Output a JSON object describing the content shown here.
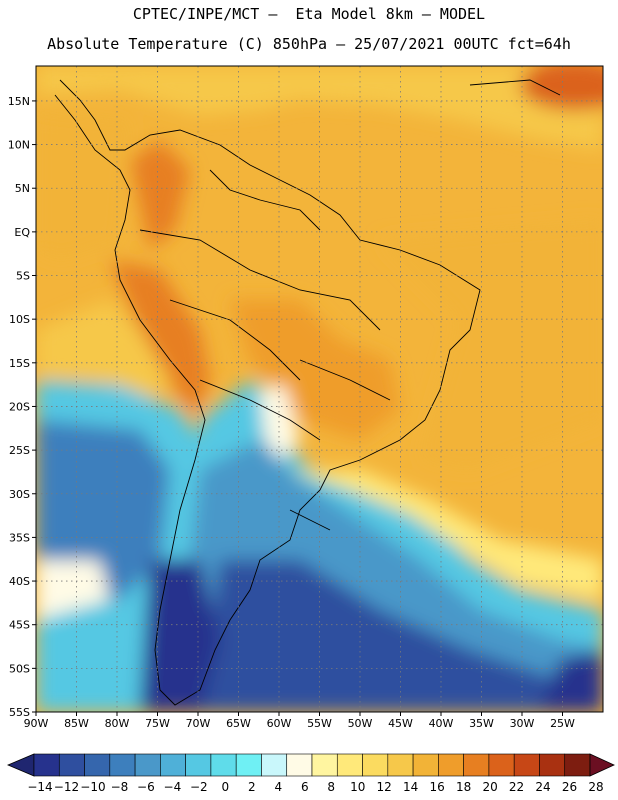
{
  "title_line1": "CPTEC/INPE/MCT –  Eta Model 8km – MODEL",
  "title_line2": "Absolute Temperature (C) 850hPa – 25/07/2021 00UTC fct=64h",
  "lat_labels": [
    "15N",
    "10N",
    "5N",
    "EQ",
    "5S",
    "10S",
    "15S",
    "20S",
    "25S",
    "30S",
    "35S",
    "40S",
    "45S",
    "50S",
    "55S"
  ],
  "lon_labels": [
    "90W",
    "85W",
    "80W",
    "75W",
    "70W",
    "65W",
    "60W",
    "55W",
    "50W",
    "45W",
    "40W",
    "35W",
    "30W",
    "25W"
  ],
  "colorbar": {
    "labels": [
      "−14",
      "−12",
      "−10",
      "−8",
      "−6",
      "−4",
      "−2",
      "0",
      "2",
      "4",
      "6",
      "8",
      "10",
      "12",
      "14",
      "16",
      "18",
      "20",
      "22",
      "24",
      "26",
      "28"
    ],
    "colors": [
      "#26328d",
      "#2f4f9f",
      "#3566ad",
      "#3d7fbd",
      "#4a98c9",
      "#4fb0d8",
      "#55c8e3",
      "#5fdcea",
      "#6ff0f4",
      "#c9f7fb",
      "#fffbe6",
      "#fff5a0",
      "#ffe97a",
      "#fbdb60",
      "#f6c84a",
      "#f2b337",
      "#ef9d2b",
      "#e77f21",
      "#db621b",
      "#c74716",
      "#a93111",
      "#7d1d10"
    ],
    "under_color": "#1f2670",
    "over_color": "#6b0f22"
  }
}
